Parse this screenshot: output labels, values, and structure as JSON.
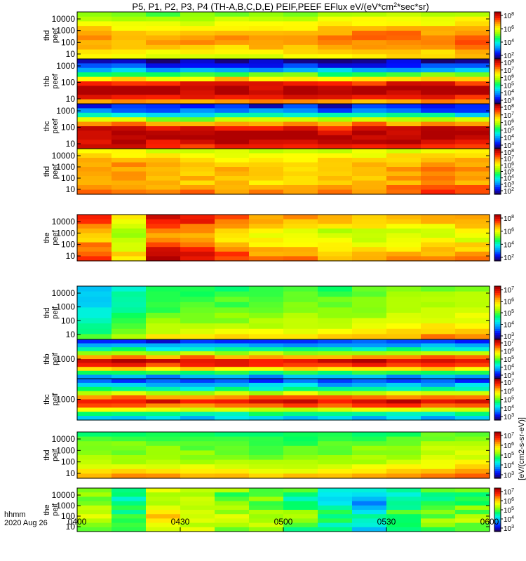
{
  "chart_data": {
    "type": "heatmap",
    "title": "P5, P1, P2, P3, P4 (TH-A,B,C,D,E) PEIF,PEEF EFlux eV/(eV*cm^2*sec*sr)",
    "title_parts": {
      "pre": "P5, P1, P2, P3, P4 (TH-A,B,C,D,E) PEIF,PEEF EFlux eV/(eV*cm",
      "exp": "2",
      "post": "*sec*sr)"
    },
    "xlabel": "hhmm",
    "date_label": "2020 Aug 26",
    "x_ticks": [
      "0400",
      "0430",
      "0500",
      "0530",
      "0600"
    ],
    "x_range_minutes": [
      0,
      120
    ],
    "colorbar_label": "[eV/(cm2-s-sr-eV)]",
    "colormap": [
      "#1a0066",
      "#0010ff",
      "#0090ff",
      "#00f0f0",
      "#00ff60",
      "#a0ff00",
      "#ffff00",
      "#ffa000",
      "#ff2000",
      "#b00000"
    ],
    "panels": [
      {
        "name": "thd-peef",
        "line1": "thd",
        "line2": "peef",
        "yticks": [
          "10000",
          "1000",
          "100",
          "10"
        ],
        "cbar_ticks": [
          {
            "b": "10",
            "e": "8"
          },
          {
            "b": "10",
            "e": "6"
          },
          {
            "b": "10",
            "e": "4"
          },
          {
            "b": "10",
            "e": "2"
          }
        ],
        "profile": [
          5,
          5.6,
          6.1,
          6.6,
          7.1,
          7.4,
          7.3,
          6.9,
          6.4,
          6.1
        ],
        "trend": [
          0,
          -0.2,
          -0.2,
          -0.1,
          -0.1,
          0,
          0.1,
          0.3,
          0.4,
          0.4,
          0.3,
          0.6
        ],
        "noise": 0.35
      },
      {
        "name": "thb-peef",
        "line1": "thb",
        "line2": "peef",
        "yticks": [
          "1000",
          "100",
          "10"
        ],
        "cbar_ticks": [
          {
            "b": "10",
            "e": "8"
          },
          {
            "b": "10",
            "e": "7"
          },
          {
            "b": "10",
            "e": "6"
          },
          {
            "b": "10",
            "e": "5"
          },
          {
            "b": "10",
            "e": "4"
          },
          {
            "b": "10",
            "e": "3"
          }
        ],
        "profile": [
          0.4,
          1.2,
          2.6,
          4.6,
          6.6,
          8.4,
          9.2,
          9.4,
          8.6,
          7.2
        ],
        "trend": [
          0,
          0.1,
          -0.2,
          0,
          0.2,
          -0.1,
          0.1,
          0,
          -0.2,
          0.1,
          0,
          0.1
        ],
        "noise": 0.55
      },
      {
        "name": "thc-peef",
        "line1": "thc",
        "line2": "peef",
        "yticks": [
          "1000",
          "100",
          "10"
        ],
        "cbar_ticks": [
          {
            "b": "10",
            "e": "8"
          },
          {
            "b": "10",
            "e": "7"
          },
          {
            "b": "10",
            "e": "6"
          },
          {
            "b": "10",
            "e": "5"
          },
          {
            "b": "10",
            "e": "4"
          },
          {
            "b": "10",
            "e": "3"
          }
        ],
        "profile": [
          1,
          1.8,
          3.3,
          5.4,
          7.4,
          8.8,
          9.3,
          9.4,
          9,
          8.6
        ],
        "trend": [
          0,
          0.1,
          0,
          -0.1,
          0.1,
          0,
          0.1,
          -0.1,
          0,
          0.1,
          0,
          0
        ],
        "noise": 0.55
      },
      {
        "name": "thd-peef-2",
        "line1": "thd",
        "line2": "peef",
        "yticks": [
          "10000",
          "1000",
          "100",
          "10"
        ],
        "cbar_ticks": [
          {
            "b": "10",
            "e": "8"
          },
          {
            "b": "10",
            "e": "7"
          },
          {
            "b": "10",
            "e": "6"
          },
          {
            "b": "10",
            "e": "5"
          },
          {
            "b": "10",
            "e": "4"
          },
          {
            "b": "10",
            "e": "3"
          },
          {
            "b": "10",
            "e": "2"
          }
        ],
        "profile": [
          5.8,
          6.3,
          6.7,
          7,
          7.1,
          7,
          7,
          6.9,
          7.3,
          7.6
        ],
        "trend": [
          0.4,
          0.3,
          0.1,
          0,
          -0.1,
          -0.2,
          -0.3,
          -0.2,
          0,
          0.2,
          0.5,
          0.4
        ],
        "noise": 0.35
      },
      {
        "name": "the-peef",
        "line1": "the",
        "line2": "peef",
        "yticks": [
          "10000",
          "1000",
          "100",
          "10"
        ],
        "cbar_ticks": [
          {
            "b": "10",
            "e": "8"
          },
          {
            "b": "10",
            "e": "6"
          },
          {
            "b": "10",
            "e": "4"
          },
          {
            "b": "10",
            "e": "2"
          }
        ],
        "profile": [
          7,
          6.8,
          6.3,
          5.7,
          5.5,
          5.8,
          6.2,
          6.6,
          7,
          7.2
        ],
        "trend": [
          1.2,
          -0.4,
          2,
          1.6,
          1,
          0.4,
          0.3,
          0,
          0,
          0.1,
          0.2,
          0.3
        ],
        "noise": 0.4
      },
      {
        "name": "thd-peif",
        "line1": "thd",
        "line2": "peif",
        "yticks": [
          "10000",
          "1000",
          "100",
          "10"
        ],
        "cbar_ticks": [
          {
            "b": "10",
            "e": "7"
          },
          {
            "b": "10",
            "e": "6"
          },
          {
            "b": "10",
            "e": "5"
          },
          {
            "b": "10",
            "e": "4"
          },
          {
            "b": "10",
            "e": "3"
          }
        ],
        "profile": [
          4.6,
          4.9,
          5,
          5.1,
          5.2,
          5.4,
          5.6,
          5.9,
          6.3,
          7
        ],
        "trend": [
          -2.2,
          -1.4,
          -0.6,
          -0.4,
          -0.4,
          -0.3,
          -0.2,
          -0.2,
          0,
          0.2,
          0.5,
          0.6
        ],
        "noise": 0.3
      },
      {
        "name": "thb-peif",
        "line1": "thb",
        "line2": "peif",
        "yticks": [
          "1000"
        ],
        "cbar_ticks": [
          {
            "b": "10",
            "e": "7"
          },
          {
            "b": "10",
            "e": "6"
          },
          {
            "b": "10",
            "e": "5"
          },
          {
            "b": "10",
            "e": "4"
          },
          {
            "b": "10",
            "e": "3"
          }
        ],
        "profile": [
          1.2,
          2.2,
          3.6,
          5.4,
          7.4,
          8.9,
          8.4,
          6.6,
          4.4,
          2.4
        ],
        "trend": [
          0,
          0.2,
          -0.1,
          0.1,
          0,
          -0.1,
          0.1,
          0,
          0.2,
          0,
          0.1,
          0
        ],
        "noise": 0.45
      },
      {
        "name": "thc-peif",
        "line1": "thc",
        "line2": "peif",
        "yticks": [
          "1000"
        ],
        "cbar_ticks": [
          {
            "b": "10",
            "e": "7"
          },
          {
            "b": "10",
            "e": "6"
          },
          {
            "b": "10",
            "e": "5"
          },
          {
            "b": "10",
            "e": "4"
          },
          {
            "b": "10",
            "e": "3"
          }
        ],
        "profile": [
          1.4,
          2.6,
          3.8,
          5.6,
          7.6,
          8.8,
          7.8,
          5.8,
          3.8,
          2.6
        ],
        "trend": [
          0,
          0.1,
          0,
          -0.1,
          0.1,
          0,
          0.1,
          -0.1,
          0,
          0.1,
          0,
          0
        ],
        "noise": 0.45
      },
      {
        "name": "thd-peif-2",
        "line1": "thd",
        "line2": "peif",
        "yticks": [
          "10000",
          "1000",
          "100",
          "10"
        ],
        "cbar_ticks": [
          {
            "b": "10",
            "e": "7"
          },
          {
            "b": "10",
            "e": "6"
          },
          {
            "b": "10",
            "e": "5"
          },
          {
            "b": "10",
            "e": "4"
          },
          {
            "b": "10",
            "e": "3"
          }
        ],
        "profile": [
          4.3,
          4.6,
          4.9,
          5,
          5.1,
          5.2,
          5.5,
          5.9,
          6.5,
          7.3
        ],
        "trend": [
          0,
          0,
          0,
          -0.1,
          -0.2,
          -0.3,
          -0.3,
          -0.2,
          0,
          0.2,
          0.5,
          0.6
        ],
        "noise": 0.3
      },
      {
        "name": "the-peif",
        "line1": "the",
        "line2": "peif",
        "yticks": [
          "10000",
          "1000",
          "100",
          "10"
        ],
        "cbar_ticks": [
          {
            "b": "10",
            "e": "7"
          },
          {
            "b": "10",
            "e": "6"
          },
          {
            "b": "10",
            "e": "5"
          },
          {
            "b": "10",
            "e": "4"
          },
          {
            "b": "10",
            "e": "3"
          }
        ],
        "profile": [
          4.6,
          4.4,
          4.2,
          4.3,
          4.6,
          4.9,
          5.1,
          5,
          4.8,
          4.6
        ],
        "trend": [
          0.6,
          -0.6,
          1.4,
          1,
          0.4,
          0.5,
          -0.2,
          -0.8,
          -1.8,
          -0.6,
          0,
          0.2
        ],
        "noise": 0.6
      }
    ]
  }
}
